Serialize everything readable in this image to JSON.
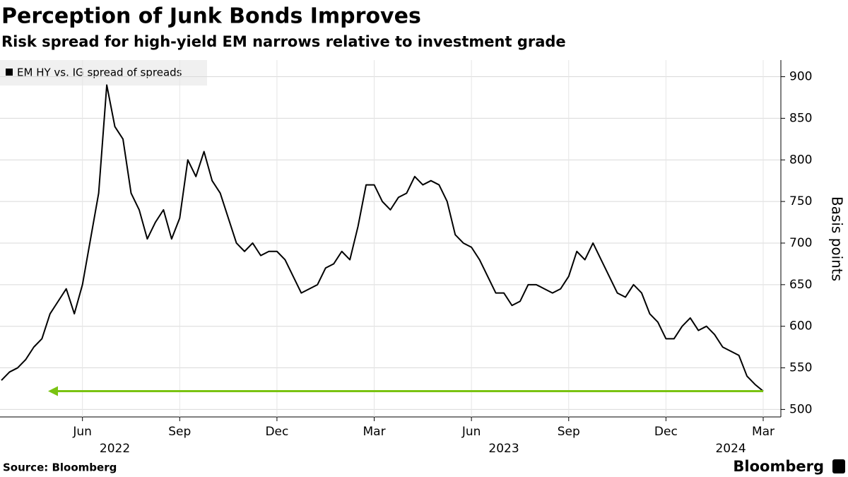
{
  "chart_data": {
    "type": "line",
    "title": "Perception of Junk Bonds Improves",
    "subtitle": "Risk spread for high-yield EM narrows relative to investment grade",
    "y_axis_label": "Basis points",
    "source": "Source: Bloomberg",
    "brand": "Bloomberg",
    "x": [
      "2022-03",
      "2022-03",
      "2022-04",
      "2022-04",
      "2022-04",
      "2022-04",
      "2022-05",
      "2022-05",
      "2022-05",
      "2022-05",
      "2022-06",
      "2022-06",
      "2022-06",
      "2022-06",
      "2022-07",
      "2022-07",
      "2022-07",
      "2022-07",
      "2022-08",
      "2022-08",
      "2022-08",
      "2022-08",
      "2022-09",
      "2022-09",
      "2022-09",
      "2022-09",
      "2022-10",
      "2022-10",
      "2022-10",
      "2022-10",
      "2022-11",
      "2022-11",
      "2022-11",
      "2022-11",
      "2022-12",
      "2022-12",
      "2022-12",
      "2022-12",
      "2023-01",
      "2023-01",
      "2023-01",
      "2023-01",
      "2023-02",
      "2023-02",
      "2023-02",
      "2023-02",
      "2023-03",
      "2023-03",
      "2023-03",
      "2023-03",
      "2023-04",
      "2023-04",
      "2023-04",
      "2023-04",
      "2023-05",
      "2023-05",
      "2023-05",
      "2023-05",
      "2023-06",
      "2023-06",
      "2023-06",
      "2023-06",
      "2023-07",
      "2023-07",
      "2023-07",
      "2023-07",
      "2023-08",
      "2023-08",
      "2023-08",
      "2023-08",
      "2023-09",
      "2023-09",
      "2023-09",
      "2023-09",
      "2023-10",
      "2023-10",
      "2023-10",
      "2023-10",
      "2023-11",
      "2023-11",
      "2023-11",
      "2023-11",
      "2023-12",
      "2023-12",
      "2023-12",
      "2023-12",
      "2024-01",
      "2024-01",
      "2024-01",
      "2024-01",
      "2024-02",
      "2024-02",
      "2024-02",
      "2024-02",
      "2024-03"
    ],
    "series": [
      {
        "name": "EM HY vs. IG spread of spreads",
        "color": "#000000",
        "values": [
          535,
          545,
          550,
          560,
          575,
          585,
          615,
          630,
          645,
          615,
          650,
          705,
          760,
          890,
          840,
          825,
          760,
          740,
          705,
          725,
          740,
          705,
          730,
          800,
          780,
          810,
          775,
          760,
          730,
          700,
          690,
          700,
          685,
          690,
          690,
          680,
          660,
          640,
          645,
          650,
          670,
          675,
          690,
          680,
          720,
          770,
          770,
          750,
          740,
          755,
          760,
          780,
          770,
          775,
          770,
          750,
          710,
          700,
          695,
          680,
          660,
          640,
          640,
          625,
          630,
          650,
          650,
          645,
          640,
          645,
          660,
          690,
          680,
          700,
          680,
          660,
          640,
          635,
          650,
          640,
          615,
          605,
          585,
          585,
          600,
          610,
          595,
          600,
          590,
          575,
          570,
          565,
          540,
          530,
          522
        ]
      }
    ],
    "ylim": [
      491,
      920
    ],
    "yticks": [
      500,
      550,
      600,
      650,
      700,
      750,
      800,
      850,
      900
    ],
    "xticks": [
      {
        "value": "2022-06",
        "label": "Jun"
      },
      {
        "value": "2022-09",
        "label": "Sep"
      },
      {
        "value": "2022-12",
        "label": "Dec"
      },
      {
        "value": "2023-03",
        "label": "Mar"
      },
      {
        "value": "2023-06",
        "label": "Jun"
      },
      {
        "value": "2023-09",
        "label": "Sep"
      },
      {
        "value": "2023-12",
        "label": "Dec"
      },
      {
        "value": "2024-03",
        "label": "Mar"
      }
    ],
    "x_year_labels": [
      {
        "value": "2022-07",
        "label": "2022"
      },
      {
        "value": "2023-07",
        "label": "2023"
      },
      {
        "value": "2024-02",
        "label": "2024"
      }
    ],
    "grid": true,
    "arrow_color": "#7ac312"
  }
}
